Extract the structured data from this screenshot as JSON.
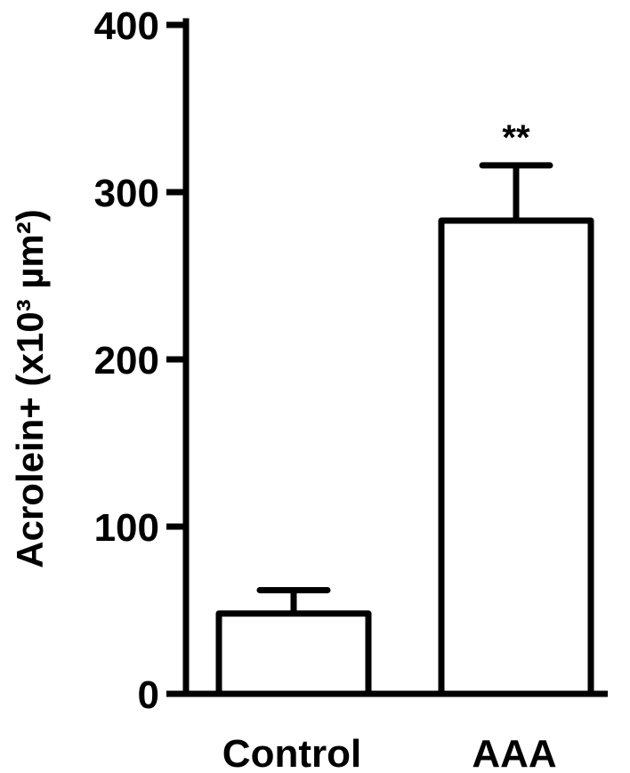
{
  "chart_data": {
    "type": "bar",
    "title": "",
    "xlabel": "",
    "ylabel": "Acrolein+ (x10³ µm²)",
    "ylim": [
      0,
      400
    ],
    "yticks": [
      "0",
      "100",
      "200",
      "300",
      "400"
    ],
    "categories": [
      "Control",
      "AAA"
    ],
    "values": [
      48,
      283
    ],
    "errors": [
      14,
      33
    ],
    "annotations": [
      "",
      "**"
    ],
    "grid": false,
    "colors": {
      "bar_fill": "#ffffff",
      "stroke": "#000000"
    }
  }
}
